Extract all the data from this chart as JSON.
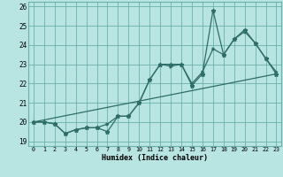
{
  "title": "",
  "xlabel": "Humidex (Indice chaleur)",
  "bg_color": "#b8e4e2",
  "grid_color": "#6ab0ac",
  "line_color": "#2e6e68",
  "xlim": [
    -0.5,
    23.5
  ],
  "ylim": [
    18.75,
    26.25
  ],
  "yticks": [
    19,
    20,
    21,
    22,
    23,
    24,
    25,
    26
  ],
  "xticks": [
    0,
    1,
    2,
    3,
    4,
    5,
    6,
    7,
    8,
    9,
    10,
    11,
    12,
    13,
    14,
    15,
    16,
    17,
    18,
    19,
    20,
    21,
    22,
    23
  ],
  "series1": [
    20.0,
    20.0,
    19.9,
    19.4,
    19.6,
    19.7,
    19.7,
    19.5,
    20.3,
    20.3,
    21.0,
    22.2,
    23.0,
    23.0,
    23.0,
    21.9,
    22.5,
    25.8,
    23.5,
    24.3,
    24.8,
    24.1,
    23.3,
    22.5
  ],
  "series2": [
    20.0,
    20.0,
    19.9,
    19.4,
    19.6,
    19.7,
    19.7,
    19.9,
    20.3,
    20.3,
    21.0,
    22.2,
    23.0,
    22.9,
    23.0,
    22.0,
    22.6,
    23.8,
    23.5,
    24.3,
    24.7,
    24.1,
    23.3,
    22.6
  ],
  "series3_x": [
    0,
    23
  ],
  "series3_y": [
    20.0,
    22.5
  ]
}
